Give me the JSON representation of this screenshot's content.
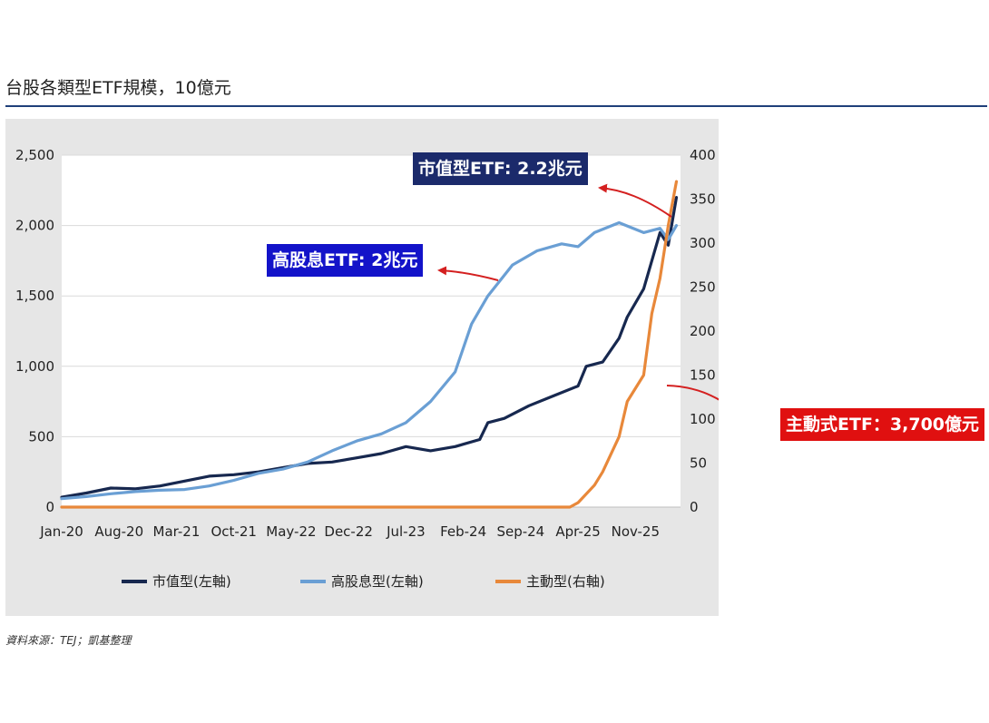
{
  "page": {
    "title": "台股各類型ETF規模，10億元",
    "source": "資料來源：TEJ；凱基整理"
  },
  "callouts": {
    "market_cap": "市值型ETF: 2.2兆元",
    "high_dividend": "高股息ETF: 2兆元",
    "active": "主動式ETF：3,700億元"
  },
  "colors": {
    "market_cap": "#17284f",
    "high_dividend": "#6a9fd4",
    "active": "#e8883a",
    "navy_box": "#1b2a6b",
    "blue_box": "#1313c9",
    "red_box": "#e01010",
    "arrow": "#d42020"
  },
  "chart_data": {
    "type": "line",
    "x_tick_labels": [
      "Jan-20",
      "Aug-20",
      "Mar-21",
      "Oct-21",
      "May-22",
      "Dec-22",
      "Jul-23",
      "Feb-24",
      "Sep-24",
      "Apr-25",
      "Nov-25"
    ],
    "x_start": "2020-01",
    "y_left": {
      "ticks": [
        "0",
        "500",
        "1,000",
        "1,500",
        "2,000",
        "2,500"
      ],
      "range": [
        0,
        2500
      ]
    },
    "y_right": {
      "ticks": [
        "0",
        "50",
        "100",
        "150",
        "200",
        "250",
        "300",
        "350",
        "400"
      ],
      "range": [
        0,
        400
      ]
    },
    "grid": "horizontal",
    "legend_position": "bottom",
    "series": [
      {
        "name": "市值型(左軸)",
        "axis": "left",
        "points": [
          [
            "2020-01",
            70
          ],
          [
            "2020-04",
            100
          ],
          [
            "2020-07",
            135
          ],
          [
            "2020-10",
            130
          ],
          [
            "2021-01",
            150
          ],
          [
            "2021-04",
            185
          ],
          [
            "2021-07",
            220
          ],
          [
            "2021-10",
            230
          ],
          [
            "2022-01",
            250
          ],
          [
            "2022-04",
            280
          ],
          [
            "2022-07",
            310
          ],
          [
            "2022-10",
            320
          ],
          [
            "2023-01",
            350
          ],
          [
            "2023-04",
            380
          ],
          [
            "2023-07",
            430
          ],
          [
            "2023-10",
            400
          ],
          [
            "2024-01",
            430
          ],
          [
            "2024-04",
            480
          ],
          [
            "2024-05",
            600
          ],
          [
            "2024-07",
            630
          ],
          [
            "2024-10",
            720
          ],
          [
            "2025-01",
            790
          ],
          [
            "2025-04",
            860
          ],
          [
            "2025-05",
            1000
          ],
          [
            "2025-07",
            1030
          ],
          [
            "2025-09",
            1200
          ],
          [
            "2025-10",
            1350
          ],
          [
            "2025-12",
            1550
          ],
          [
            "2026-02",
            1950
          ],
          [
            "2026-03",
            1860
          ],
          [
            "2026-04",
            2200
          ]
        ]
      },
      {
        "name": "高股息型(左軸)",
        "axis": "left",
        "points": [
          [
            "2020-01",
            60
          ],
          [
            "2020-04",
            75
          ],
          [
            "2020-07",
            95
          ],
          [
            "2020-10",
            110
          ],
          [
            "2021-01",
            120
          ],
          [
            "2021-04",
            125
          ],
          [
            "2021-07",
            150
          ],
          [
            "2021-10",
            190
          ],
          [
            "2022-01",
            240
          ],
          [
            "2022-04",
            270
          ],
          [
            "2022-07",
            320
          ],
          [
            "2022-10",
            400
          ],
          [
            "2023-01",
            470
          ],
          [
            "2023-04",
            520
          ],
          [
            "2023-07",
            600
          ],
          [
            "2023-10",
            750
          ],
          [
            "2024-01",
            960
          ],
          [
            "2024-03",
            1300
          ],
          [
            "2024-05",
            1500
          ],
          [
            "2024-08",
            1720
          ],
          [
            "2024-11",
            1820
          ],
          [
            "2025-02",
            1870
          ],
          [
            "2025-04",
            1850
          ],
          [
            "2025-06",
            1950
          ],
          [
            "2025-09",
            2020
          ],
          [
            "2025-12",
            1950
          ],
          [
            "2026-02",
            1980
          ],
          [
            "2026-03",
            1900
          ],
          [
            "2026-04",
            2000
          ]
        ]
      },
      {
        "name": "主動型(右軸)",
        "axis": "right",
        "points": [
          [
            "2020-01",
            0
          ],
          [
            "2025-03",
            0
          ],
          [
            "2025-04",
            5
          ],
          [
            "2025-06",
            25
          ],
          [
            "2025-07",
            40
          ],
          [
            "2025-09",
            80
          ],
          [
            "2025-10",
            120
          ],
          [
            "2025-12",
            150
          ],
          [
            "2026-01",
            220
          ],
          [
            "2026-02",
            260
          ],
          [
            "2026-03",
            320
          ],
          [
            "2026-04",
            370
          ]
        ]
      }
    ]
  }
}
